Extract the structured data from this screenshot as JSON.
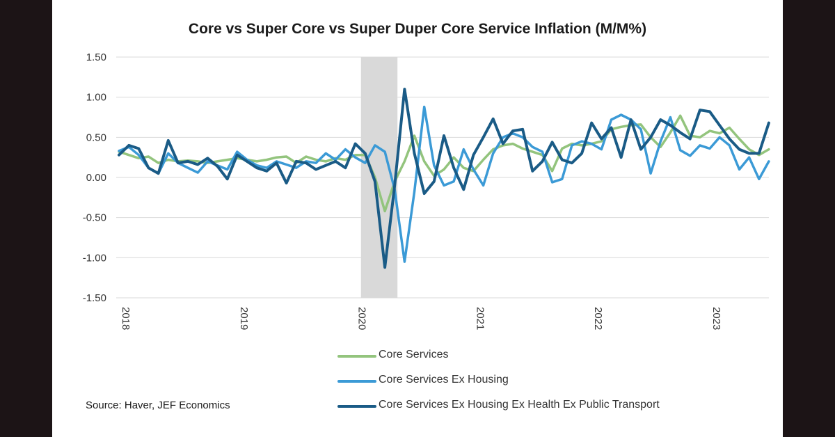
{
  "source": "Source: Haver, JEF Economics",
  "chart_data": {
    "type": "line",
    "title": "Core vs Super Core vs Super Duper Core Service Inflation (M/M%)",
    "xlabel": "",
    "ylabel": "",
    "ylim": [
      -1.5,
      1.5
    ],
    "y_ticks": [
      "1.50",
      "1.00",
      "0.50",
      "0.00",
      "-0.50",
      "-1.00",
      "-1.50"
    ],
    "x_ticks": [
      "2018",
      "2019",
      "2020",
      "2021",
      "2022",
      "2023"
    ],
    "grid": "horizontal",
    "legend_position": "bottom",
    "shaded_region": {
      "start": "2020-02",
      "end": "2020-05",
      "color": "#d9d9d9"
    },
    "x": [
      "2018-01",
      "2018-02",
      "2018-03",
      "2018-04",
      "2018-05",
      "2018-06",
      "2018-07",
      "2018-08",
      "2018-09",
      "2018-10",
      "2018-11",
      "2018-12",
      "2019-01",
      "2019-02",
      "2019-03",
      "2019-04",
      "2019-05",
      "2019-06",
      "2019-07",
      "2019-08",
      "2019-09",
      "2019-10",
      "2019-11",
      "2019-12",
      "2020-01",
      "2020-02",
      "2020-03",
      "2020-04",
      "2020-05",
      "2020-06",
      "2020-07",
      "2020-08",
      "2020-09",
      "2020-10",
      "2020-11",
      "2020-12",
      "2021-01",
      "2021-02",
      "2021-03",
      "2021-04",
      "2021-05",
      "2021-06",
      "2021-07",
      "2021-08",
      "2021-09",
      "2021-10",
      "2021-11",
      "2021-12",
      "2022-01",
      "2022-02",
      "2022-03",
      "2022-04",
      "2022-05",
      "2022-06",
      "2022-07",
      "2022-08",
      "2022-09",
      "2022-10",
      "2022-11",
      "2022-12",
      "2023-01",
      "2023-02",
      "2023-03",
      "2023-04",
      "2023-05",
      "2023-06",
      "2023-07"
    ],
    "series": [
      {
        "name": "Core Services",
        "color": "#93c47d",
        "values": [
          0.32,
          0.28,
          0.24,
          0.26,
          0.18,
          0.22,
          0.2,
          0.21,
          0.2,
          0.18,
          0.2,
          0.22,
          0.24,
          0.22,
          0.2,
          0.22,
          0.25,
          0.26,
          0.18,
          0.26,
          0.22,
          0.2,
          0.24,
          0.22,
          0.28,
          0.28,
          0.0,
          -0.42,
          -0.05,
          0.2,
          0.52,
          0.2,
          0.02,
          0.1,
          0.25,
          0.12,
          0.08,
          0.22,
          0.35,
          0.4,
          0.42,
          0.36,
          0.32,
          0.28,
          0.08,
          0.36,
          0.42,
          0.4,
          0.42,
          0.45,
          0.6,
          0.63,
          0.65,
          0.66,
          0.5,
          0.38,
          0.56,
          0.77,
          0.52,
          0.5,
          0.58,
          0.55,
          0.62,
          0.48,
          0.35,
          0.28,
          0.35
        ]
      },
      {
        "name": "Core Services Ex Housing",
        "color": "#3b9ad6",
        "values": [
          0.33,
          0.38,
          0.28,
          0.12,
          0.05,
          0.3,
          0.18,
          0.12,
          0.06,
          0.2,
          0.15,
          0.1,
          0.32,
          0.22,
          0.15,
          0.12,
          0.2,
          0.16,
          0.12,
          0.2,
          0.18,
          0.3,
          0.22,
          0.35,
          0.25,
          0.18,
          0.4,
          0.32,
          -0.15,
          -1.05,
          -0.18,
          0.88,
          0.15,
          -0.1,
          -0.05,
          0.35,
          0.1,
          -0.1,
          0.3,
          0.5,
          0.55,
          0.5,
          0.38,
          0.32,
          -0.06,
          -0.02,
          0.4,
          0.45,
          0.42,
          0.35,
          0.72,
          0.78,
          0.72,
          0.6,
          0.05,
          0.45,
          0.75,
          0.34,
          0.27,
          0.4,
          0.36,
          0.5,
          0.4,
          0.1,
          0.25,
          -0.02,
          0.2
        ]
      },
      {
        "name": "Core Services Ex Housing Ex Health Ex Public Transport",
        "color": "#1a5b86",
        "values": [
          0.28,
          0.4,
          0.36,
          0.12,
          0.05,
          0.46,
          0.18,
          0.2,
          0.16,
          0.24,
          0.14,
          -0.02,
          0.28,
          0.2,
          0.12,
          0.08,
          0.18,
          -0.07,
          0.2,
          0.18,
          0.1,
          0.15,
          0.2,
          0.12,
          0.42,
          0.3,
          -0.05,
          -1.12,
          -0.1,
          1.1,
          0.3,
          -0.2,
          -0.05,
          0.52,
          0.12,
          -0.15,
          0.28,
          0.5,
          0.73,
          0.42,
          0.58,
          0.6,
          0.08,
          0.2,
          0.44,
          0.22,
          0.18,
          0.3,
          0.68,
          0.48,
          0.62,
          0.25,
          0.72,
          0.35,
          0.5,
          0.72,
          0.65,
          0.56,
          0.48,
          0.84,
          0.82,
          0.65,
          0.48,
          0.35,
          0.3,
          0.3,
          0.68
        ]
      }
    ]
  }
}
